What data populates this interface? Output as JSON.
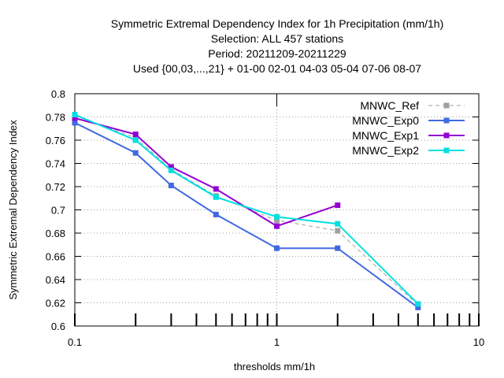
{
  "chart_data": {
    "type": "line",
    "title_lines": [
      "Symmetric Extremal Dependency Index  for 1h Precipitation (mm/1h)",
      "Selection: ALL    457 stations",
      "Period: 20211209-20211229",
      "Used {00,03,...,21} + 01-00 02-01 04-03 05-04 07-06 08-07"
    ],
    "xlabel": "thresholds mm/1h",
    "ylabel": "Symmetric Extremal Dependency Index",
    "x_scale": "log",
    "xlim": [
      0.1,
      10
    ],
    "ylim": [
      0.6,
      0.8
    ],
    "x_tick_labels": [
      "0.1",
      "1",
      "10"
    ],
    "y_tick_labels": [
      "0.6",
      "0.62",
      "0.64",
      "0.66",
      "0.68",
      "0.7",
      "0.72",
      "0.74",
      "0.76",
      "0.78",
      "0.8"
    ],
    "grid": true,
    "legend_position": "top-right",
    "series": [
      {
        "name": "MNWC_Ref",
        "color": "#a0a0a0",
        "dashed": true,
        "x": [
          0.1,
          0.2,
          0.3,
          0.5,
          1,
          2,
          5
        ],
        "y": [
          0.781,
          0.762,
          0.735,
          0.712,
          0.691,
          0.682,
          0.618
        ]
      },
      {
        "name": "MNWC_Exp0",
        "color": "#4169e1",
        "dashed": false,
        "x": [
          0.1,
          0.2,
          0.3,
          0.5,
          1,
          2,
          5
        ],
        "y": [
          0.775,
          0.749,
          0.721,
          0.696,
          0.667,
          0.667,
          0.616
        ]
      },
      {
        "name": "MNWC_Exp1",
        "color": "#9400d3",
        "dashed": false,
        "x": [
          0.1,
          0.2,
          0.3,
          0.5,
          1,
          2
        ],
        "y": [
          0.779,
          0.765,
          0.737,
          0.718,
          0.686,
          0.704
        ]
      },
      {
        "name": "MNWC_Exp2",
        "color": "#00e0e0",
        "dashed": false,
        "x": [
          0.1,
          0.2,
          0.3,
          0.5,
          1,
          2,
          5
        ],
        "y": [
          0.782,
          0.76,
          0.734,
          0.711,
          0.694,
          0.688,
          0.619
        ]
      }
    ]
  }
}
